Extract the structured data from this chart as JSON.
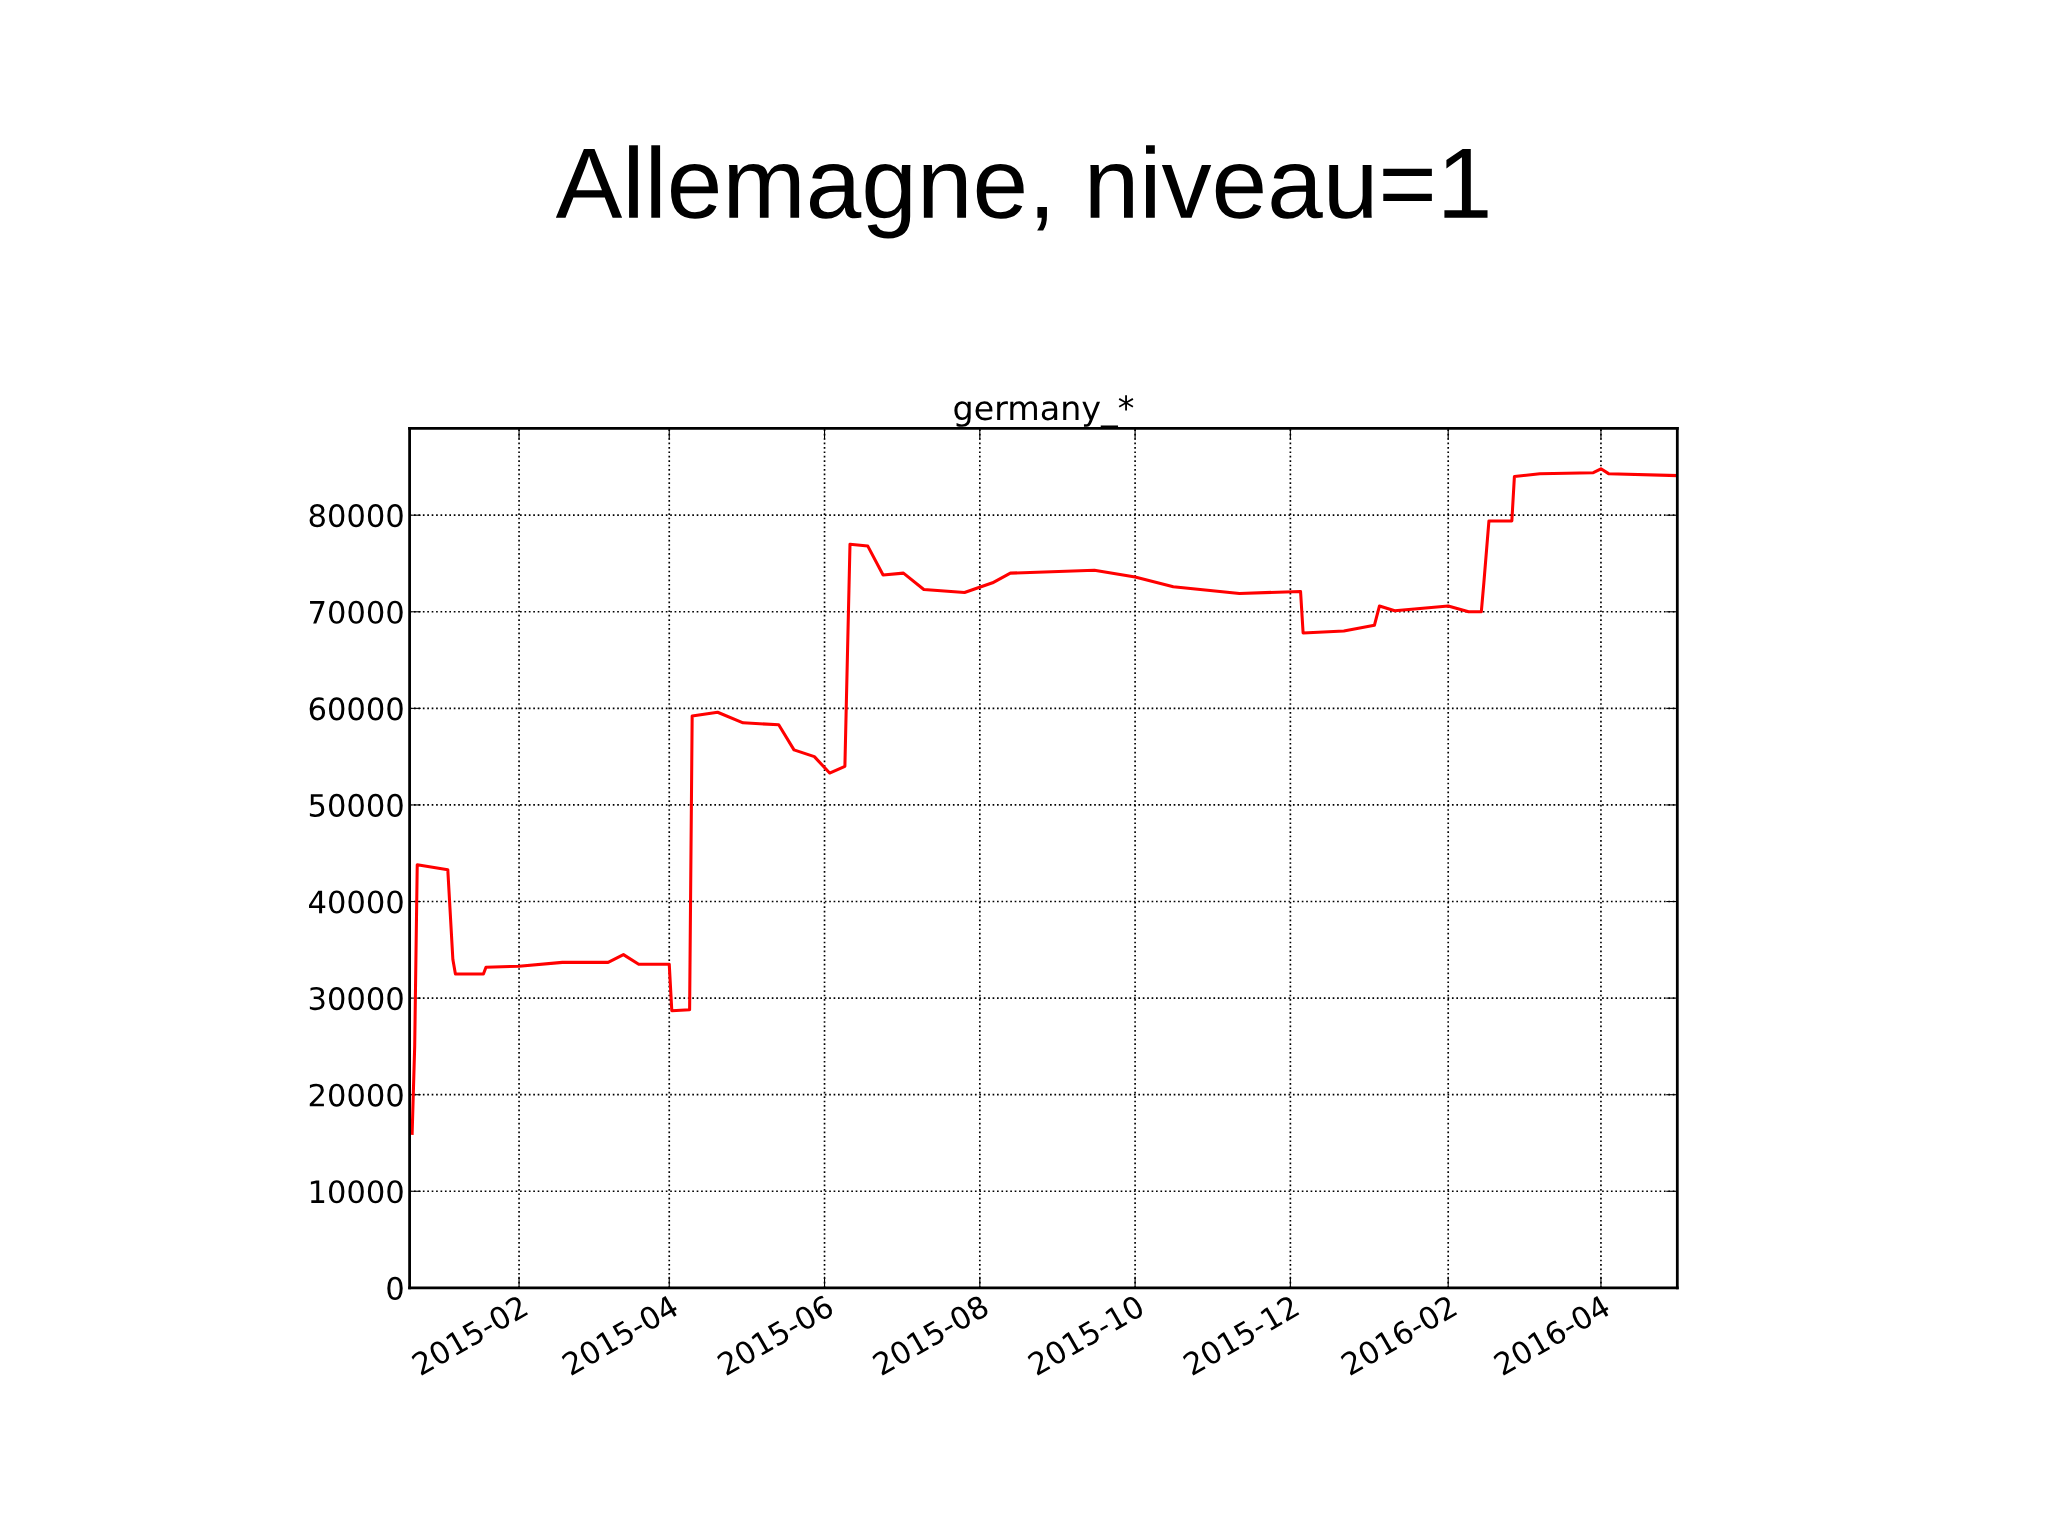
{
  "chart_data": {
    "type": "line",
    "title": "Allemagne, niveau=1",
    "subtitle": "germany_*",
    "x": [
      "2014-12-21",
      "2014-12-22",
      "2014-12-23",
      "2015-01-04",
      "2015-01-06",
      "2015-01-07",
      "2015-01-18",
      "2015-01-19",
      "2015-02-01",
      "2015-02-18",
      "2015-03-08",
      "2015-03-14",
      "2015-03-20",
      "2015-04-01",
      "2015-04-02",
      "2015-04-09",
      "2015-04-10",
      "2015-04-20",
      "2015-04-30",
      "2015-05-14",
      "2015-05-20",
      "2015-05-28",
      "2015-06-03",
      "2015-06-09",
      "2015-06-11",
      "2015-06-18",
      "2015-06-24",
      "2015-07-02",
      "2015-07-10",
      "2015-07-26",
      "2015-08-06",
      "2015-08-13",
      "2015-09-15",
      "2015-10-01",
      "2015-10-16",
      "2015-11-11",
      "2015-12-05",
      "2015-12-06",
      "2015-12-22",
      "2016-01-03",
      "2016-01-05",
      "2016-01-11",
      "2016-02-01",
      "2016-02-09",
      "2016-02-14",
      "2016-02-15",
      "2016-02-17",
      "2016-02-26",
      "2016-02-27",
      "2016-03-08",
      "2016-03-29",
      "2016-04-01",
      "2016-04-04",
      "2016-05-01"
    ],
    "series": [
      {
        "color": "#ff0000",
        "values": [
          16000,
          25000,
          43800,
          43300,
          34000,
          32500,
          32500,
          33200,
          33300,
          33700,
          33700,
          34500,
          33500,
          33500,
          28700,
          28800,
          59200,
          59600,
          58500,
          58300,
          55700,
          55000,
          53300,
          54000,
          77000,
          76800,
          73800,
          74000,
          72300,
          72000,
          73000,
          74000,
          74300,
          73600,
          72600,
          71900,
          72100,
          67800,
          68000,
          68600,
          70600,
          70100,
          70600,
          70000,
          70000,
          73000,
          79400,
          79400,
          84000,
          84300,
          84400,
          84800,
          84300,
          84100
        ]
      }
    ],
    "xlim": [
      "2014-12-20",
      "2016-05-01"
    ],
    "xticks": [
      {
        "value": "2015-02-01",
        "label": "2015-02"
      },
      {
        "value": "2015-04-01",
        "label": "2015-04"
      },
      {
        "value": "2015-06-01",
        "label": "2015-06"
      },
      {
        "value": "2015-08-01",
        "label": "2015-08"
      },
      {
        "value": "2015-10-01",
        "label": "2015-10"
      },
      {
        "value": "2015-12-01",
        "label": "2015-12"
      },
      {
        "value": "2016-02-01",
        "label": "2016-02"
      },
      {
        "value": "2016-04-01",
        "label": "2016-04"
      }
    ],
    "ylim": [
      0,
      89000
    ],
    "yticks": [
      0,
      10000,
      20000,
      30000,
      40000,
      50000,
      60000,
      70000,
      80000
    ],
    "grid": true,
    "marker": "none",
    "line_style": "solid",
    "legend": false
  }
}
